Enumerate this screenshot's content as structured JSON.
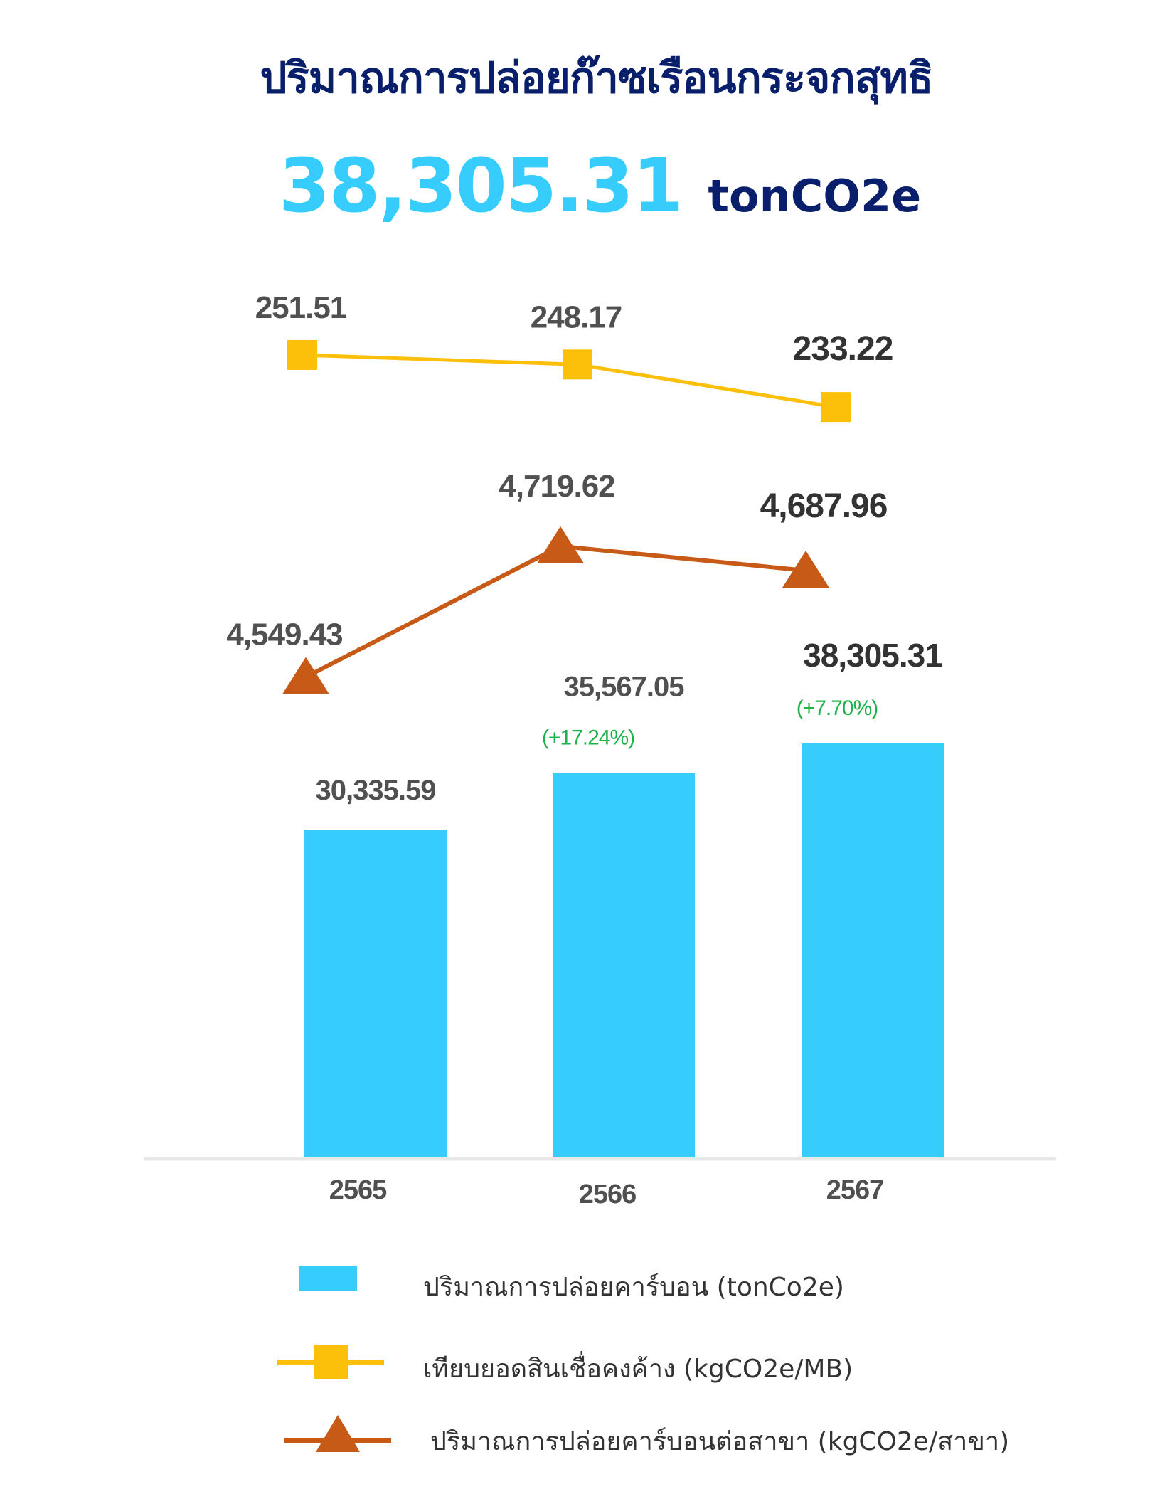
{
  "header": {
    "title": "ปริมาณการปล่อยก๊าซเรือนกระจกสุทธิ",
    "total_value": "38,305.31",
    "total_unit": "tonCO2e"
  },
  "colors": {
    "title": "#0a1f6b",
    "bar": "#36cdfc",
    "line_mb": "#fcbf0a",
    "line_branch": "#c85a17",
    "growth_text": "#1db34a",
    "label_text": "#505050",
    "axis": "#e8e8e8"
  },
  "chart_data": {
    "type": "bar",
    "categories": [
      "2565",
      "2566",
      "2567"
    ],
    "series": [
      {
        "name": "ปริมาณการปล่อยคาร์บอน (tonCo2e)",
        "type": "bar",
        "values": [
          30335.59,
          35567.05,
          38305.31
        ],
        "labels": [
          "30,335.59",
          "35,567.05",
          "38,305.31"
        ],
        "growth_labels": [
          "",
          "(+17.24%)",
          "(+7.70%)"
        ]
      },
      {
        "name": "เทียบยอดสินเชื่อคงค้าง (kgCO2e/MB)",
        "type": "line",
        "marker": "square",
        "values": [
          251.51,
          248.17,
          233.22
        ],
        "labels": [
          "251.51",
          "248.17",
          "233.22"
        ]
      },
      {
        "name": "ปริมาณการปล่อยคาร์บอนต่อสาขา (kgCO2e/สาขา)",
        "type": "line",
        "marker": "triangle",
        "values": [
          4549.43,
          4719.62,
          4687.96
        ],
        "labels": [
          "4,549.43",
          "4,719.62",
          "4,687.96"
        ]
      }
    ],
    "legend_position": "bottom"
  },
  "legend": [
    {
      "label": "ปริมาณการปล่อยคาร์บอน (tonCo2e)",
      "icon": "bar-swatch"
    },
    {
      "label": "เทียบยอดสินเชื่อคงค้าง (kgCO2e/MB)",
      "icon": "square-line-marker"
    },
    {
      "label": "ปริมาณการปล่อยคาร์บอนต่อสาขา (kgCO2e/สาขา)",
      "icon": "triangle-line-marker"
    }
  ]
}
